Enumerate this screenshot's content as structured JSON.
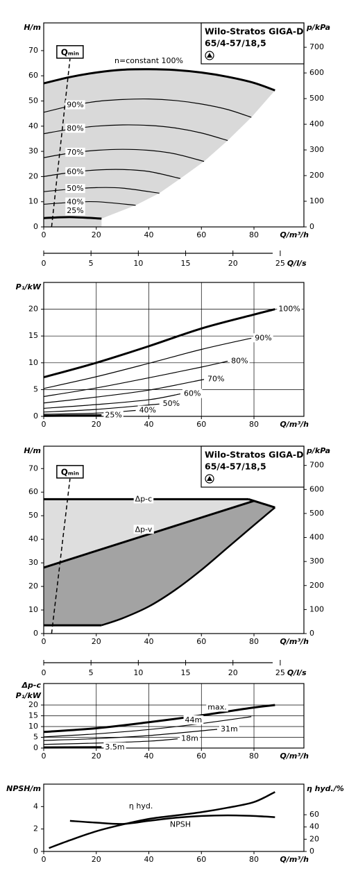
{
  "chart_data": [
    {
      "type": "line",
      "ylabel": "H/m",
      "y2label": "p/kPa",
      "xlabel": "Q/m³/h",
      "xlim": [
        0,
        99
      ],
      "xticks": [
        0,
        20,
        40,
        60,
        80
      ],
      "ylim": [
        0,
        81
      ],
      "yticks": [
        0,
        10,
        20,
        30,
        40,
        50,
        60,
        70
      ],
      "y2lim": [
        0,
        795
      ],
      "y2ticks": [
        0,
        100,
        200,
        300,
        400,
        500,
        600,
        700
      ],
      "grid": false,
      "line_color": "#000000",
      "area_color": "#d9d9d9",
      "product": [
        "Wilo-Stratos GIGA-D",
        "65/4-57/18,5"
      ],
      "qmin": {
        "label": "Qₘᵢₙ",
        "x": [
          3,
          10
        ],
        "values": [
          0,
          67
        ]
      },
      "series": [
        {
          "name": "n=constant 100%",
          "line_width": 3,
          "x": [
            0,
            10,
            20,
            30,
            40,
            50,
            60,
            70,
            80,
            88
          ],
          "values": [
            57,
            59.5,
            61.3,
            62.4,
            62.6,
            62.3,
            61.3,
            59.6,
            57.2,
            54.2
          ]
        },
        {
          "name": "90%",
          "line_width": 1.2,
          "x": [
            0,
            10,
            20,
            30,
            40,
            50,
            60,
            70,
            79
          ],
          "values": [
            45.5,
            48,
            49.8,
            50.6,
            50.8,
            50.2,
            48.8,
            46.6,
            43.5
          ]
        },
        {
          "name": "80%",
          "line_width": 1.2,
          "x": [
            0,
            10,
            20,
            30,
            40,
            50,
            60,
            70
          ],
          "values": [
            37,
            38.8,
            40,
            40.5,
            40.3,
            39.3,
            37.3,
            34.3
          ]
        },
        {
          "name": "70%",
          "line_width": 1.2,
          "x": [
            0,
            10,
            20,
            30,
            40,
            50,
            61
          ],
          "values": [
            27.5,
            29.3,
            30.4,
            30.8,
            30.4,
            29,
            26
          ]
        },
        {
          "name": "60%",
          "line_width": 1.2,
          "x": [
            0,
            10,
            20,
            30,
            40,
            52
          ],
          "values": [
            20,
            21.6,
            22.6,
            22.8,
            22,
            19.2
          ]
        },
        {
          "name": "50%",
          "line_width": 1.2,
          "x": [
            0,
            10,
            20,
            30,
            44
          ],
          "values": [
            14,
            15,
            15.6,
            15.4,
            13.4
          ]
        },
        {
          "name": "40%",
          "line_width": 1.2,
          "x": [
            0,
            10,
            20,
            35
          ],
          "values": [
            9,
            9.7,
            10,
            8.6
          ]
        },
        {
          "name": "25%",
          "line_width": 3,
          "x": [
            0,
            10,
            22
          ],
          "values": [
            3.5,
            3.9,
            3.3
          ]
        }
      ]
    },
    {
      "type": "axis",
      "xlabel": "Q/l/s",
      "xlim": [
        0,
        27.5
      ],
      "xticks": [
        0,
        5,
        10,
        15,
        20,
        25
      ]
    },
    {
      "type": "line",
      "ylabel": "P₁/kW",
      "xlabel": "Q/m³/h",
      "xlim": [
        0,
        99
      ],
      "xticks": [
        0,
        20,
        40,
        60,
        80
      ],
      "ylim": [
        0,
        25
      ],
      "yticks": [
        0,
        5,
        10,
        15,
        20
      ],
      "grid": true,
      "line_color": "#000000",
      "series": [
        {
          "name": "100%",
          "line_width": 3,
          "x": [
            0,
            20,
            40,
            60,
            80,
            88
          ],
          "values": [
            7.3,
            10,
            13.1,
            16.4,
            19,
            20
          ]
        },
        {
          "name": "90%",
          "line_width": 1.2,
          "x": [
            0,
            20,
            40,
            60,
            79
          ],
          "values": [
            5.2,
            7.4,
            9.9,
            12.5,
            14.6
          ]
        },
        {
          "name": "80%",
          "line_width": 1.2,
          "x": [
            0,
            20,
            40,
            60,
            70
          ],
          "values": [
            3.7,
            5.3,
            7.2,
            9.2,
            10.3
          ]
        },
        {
          "name": "70%",
          "line_width": 1.2,
          "x": [
            0,
            20,
            40,
            61
          ],
          "values": [
            2.5,
            3.6,
            4.9,
            6.9
          ]
        },
        {
          "name": "60%",
          "line_width": 1.2,
          "x": [
            0,
            20,
            40,
            52
          ],
          "values": [
            1.5,
            2.2,
            3.1,
            4.2
          ]
        },
        {
          "name": "50%",
          "line_width": 1.2,
          "x": [
            0,
            20,
            44
          ],
          "values": [
            0.8,
            1.3,
            2.3
          ]
        },
        {
          "name": "40%",
          "line_width": 1.2,
          "x": [
            0,
            20,
            35
          ],
          "values": [
            0.4,
            0.6,
            1.1
          ]
        },
        {
          "name": "25%",
          "line_width": 3,
          "x": [
            0,
            22
          ],
          "values": [
            0.1,
            0.2
          ]
        }
      ]
    },
    {
      "type": "line",
      "ylabel": "H/m",
      "y2label": "p/kPa",
      "xlabel": "Q/m³/h",
      "xlim": [
        0,
        99
      ],
      "xticks": [
        0,
        20,
        40,
        60,
        80
      ],
      "ylim": [
        0,
        79.5
      ],
      "yticks": [
        0,
        10,
        20,
        30,
        40,
        50,
        60,
        70
      ],
      "y2lim": [
        0,
        780
      ],
      "y2ticks": [
        0,
        100,
        200,
        300,
        400,
        500,
        600,
        700
      ],
      "grid": false,
      "line_color": "#000000",
      "area_colors": [
        "#dedede",
        "#a3a3a3"
      ],
      "product": [
        "Wilo-Stratos GIGA-D",
        "65/4-57/18,5"
      ],
      "qmin": {
        "label": "Qₘᵢₙ",
        "x": [
          3,
          10
        ],
        "values": [
          0,
          66
        ]
      },
      "series": [
        {
          "name": "Δp-c",
          "line_width": 3,
          "x": [
            0,
            78
          ],
          "values": [
            57,
            57
          ]
        },
        {
          "name": "Δp-v",
          "line_width": 3,
          "x": [
            0,
            80
          ],
          "values": [
            28,
            56.3
          ]
        },
        {
          "line_width": 3,
          "x": [
            78,
            88
          ],
          "values": [
            57,
            53.5
          ]
        },
        {
          "line_width": 2.5,
          "x": [
            22,
            30,
            40,
            50,
            60,
            70,
            80,
            88
          ],
          "values": [
            3.5,
            6.5,
            11.5,
            18.5,
            27,
            36.5,
            46,
            53.5
          ]
        },
        {
          "line_width": 3,
          "x": [
            0,
            22
          ],
          "values": [
            3.5,
            3.5
          ]
        }
      ]
    },
    {
      "type": "axis",
      "xlabel": "Q/l/s",
      "xlim": [
        0,
        27.5
      ],
      "xticks": [
        0,
        5,
        10,
        15,
        20,
        25
      ]
    },
    {
      "type": "line",
      "ylabel": [
        "Δp-c",
        "P₁/kW"
      ],
      "xlabel": "Q/m³/h",
      "xlim": [
        0,
        99
      ],
      "xticks": [
        0,
        20,
        40,
        60,
        80
      ],
      "ylim": [
        0,
        30
      ],
      "yticks": [
        0,
        5,
        10,
        15,
        20
      ],
      "grid": true,
      "line_color": "#000000",
      "series": [
        {
          "name": "max.",
          "line_width": 3,
          "x": [
            0,
            20,
            40,
            60,
            78,
            88
          ],
          "values": [
            7.5,
            9.2,
            12,
            15.2,
            18.5,
            20
          ]
        },
        {
          "name": "44m",
          "line_width": 1.2,
          "x": [
            0,
            20,
            40,
            60,
            79
          ],
          "values": [
            5.2,
            6.6,
            8.6,
            11.4,
            14.6
          ]
        },
        {
          "name": "31m",
          "line_width": 1.2,
          "x": [
            0,
            20,
            40,
            66
          ],
          "values": [
            3.5,
            4.4,
            5.8,
            8.7
          ]
        },
        {
          "name": "18m",
          "line_width": 1.2,
          "x": [
            0,
            20,
            40,
            51
          ],
          "values": [
            1.7,
            2.3,
            3.2,
            4.3
          ]
        },
        {
          "name": "3.5m",
          "line_width": 3,
          "x": [
            0,
            22
          ],
          "values": [
            0.3,
            0.4
          ]
        }
      ]
    },
    {
      "type": "line",
      "ylabel": "NPSH/m",
      "y2label": "η hyd./%",
      "xlabel": "Q/m³/h",
      "xlim": [
        0,
        99
      ],
      "xticks": [
        0,
        20,
        40,
        60,
        80
      ],
      "ylim": [
        0,
        6
      ],
      "yticks": [
        0,
        2,
        4
      ],
      "y2lim": [
        0,
        110
      ],
      "y2ticks": [
        0,
        20,
        40,
        60
      ],
      "grid": false,
      "line_color": "#000000",
      "series": [
        {
          "name": "η hyd.",
          "axis": "y2",
          "line_width": 2.5,
          "x": [
            10,
            20,
            30,
            40,
            50,
            60,
            70,
            80,
            88
          ],
          "values": [
            50,
            47,
            45,
            50,
            55,
            58,
            59,
            58,
            56
          ]
        },
        {
          "name": "NPSH",
          "line_width": 2.5,
          "x": [
            2,
            10,
            20,
            30,
            40,
            50,
            60,
            70,
            80,
            88
          ],
          "values": [
            0.3,
            1.0,
            1.8,
            2.4,
            2.9,
            3.2,
            3.5,
            3.9,
            4.4,
            5.3
          ]
        }
      ]
    }
  ]
}
